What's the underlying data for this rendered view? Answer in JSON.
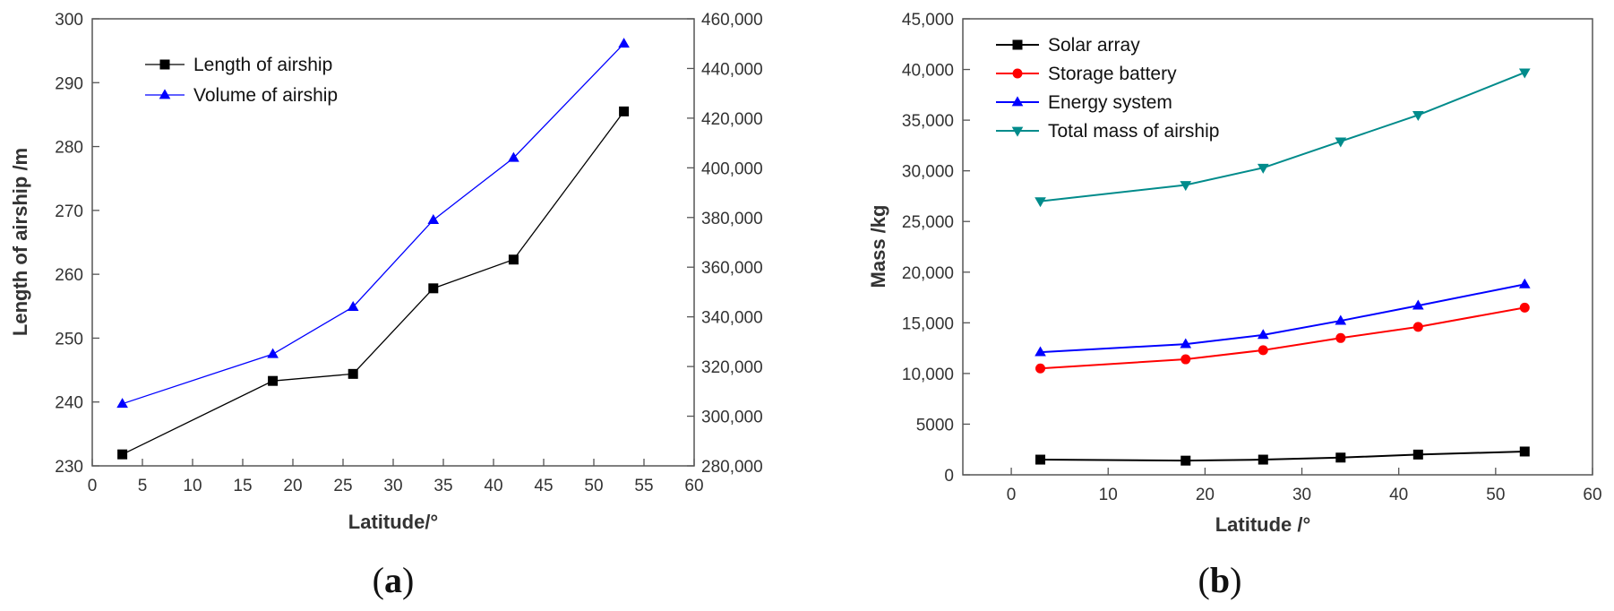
{
  "chart_data": [
    {
      "type": "line",
      "panel_label": "a",
      "xlabel": "Latitude/°",
      "ylabel": "Length of airship /m",
      "xlim": [
        0,
        60
      ],
      "x_ticks": [
        "0",
        "5",
        "10",
        "15",
        "20",
        "25",
        "30",
        "35",
        "40",
        "45",
        "50",
        "55",
        "60"
      ],
      "ylim": [
        230,
        300
      ],
      "y_ticks": [
        "230",
        "240",
        "250",
        "260",
        "270",
        "280",
        "290",
        "300"
      ],
      "y2lim": [
        280000,
        460000
      ],
      "y2_ticks": [
        "280,000",
        "300,000",
        "320,000",
        "340,000",
        "360,000",
        "380,000",
        "400,000",
        "420,000",
        "440,000",
        "460,000"
      ],
      "x": [
        3,
        18,
        26,
        34,
        42,
        53
      ],
      "series": [
        {
          "name": "Length of airship",
          "axis": "left",
          "color": "#000000",
          "marker": "square",
          "values": [
            231.8,
            243.3,
            244.4,
            257.8,
            262.3,
            285.5
          ]
        },
        {
          "name": "Volume of airship",
          "axis": "right",
          "color": "#0000ff",
          "marker": "triangle-up",
          "values": [
            305000,
            325000,
            344000,
            379000,
            404000,
            450000
          ]
        }
      ],
      "legend_position": "top-left"
    },
    {
      "type": "line",
      "panel_label": "b",
      "xlabel": "Latitude /°",
      "ylabel": "Mass /kg",
      "xlim": [
        -5,
        60
      ],
      "x_ticks": [
        "0",
        "10",
        "20",
        "30",
        "40",
        "50",
        "60"
      ],
      "ylim": [
        0,
        45000
      ],
      "y_ticks": [
        "0",
        "5000",
        "10,000",
        "15,000",
        "20,000",
        "25,000",
        "30,000",
        "35,000",
        "40,000",
        "45,000"
      ],
      "x": [
        3,
        18,
        26,
        34,
        42,
        53
      ],
      "series": [
        {
          "name": "Solar array",
          "color": "#000000",
          "marker": "square",
          "values": [
            1500,
            1400,
            1500,
            1700,
            2000,
            2300
          ]
        },
        {
          "name": "Storage battery",
          "color": "#ff0000",
          "marker": "circle",
          "values": [
            10500,
            11400,
            12300,
            13500,
            14600,
            16500
          ]
        },
        {
          "name": "Energy system",
          "color": "#0000ff",
          "marker": "triangle-up",
          "values": [
            12100,
            12900,
            13800,
            15200,
            16700,
            18800
          ]
        },
        {
          "name": "Total mass of airship",
          "color": "#008b8b",
          "marker": "triangle-down",
          "values": [
            27000,
            28600,
            30300,
            32900,
            35500,
            39700
          ]
        }
      ],
      "legend_position": "top-left"
    }
  ]
}
